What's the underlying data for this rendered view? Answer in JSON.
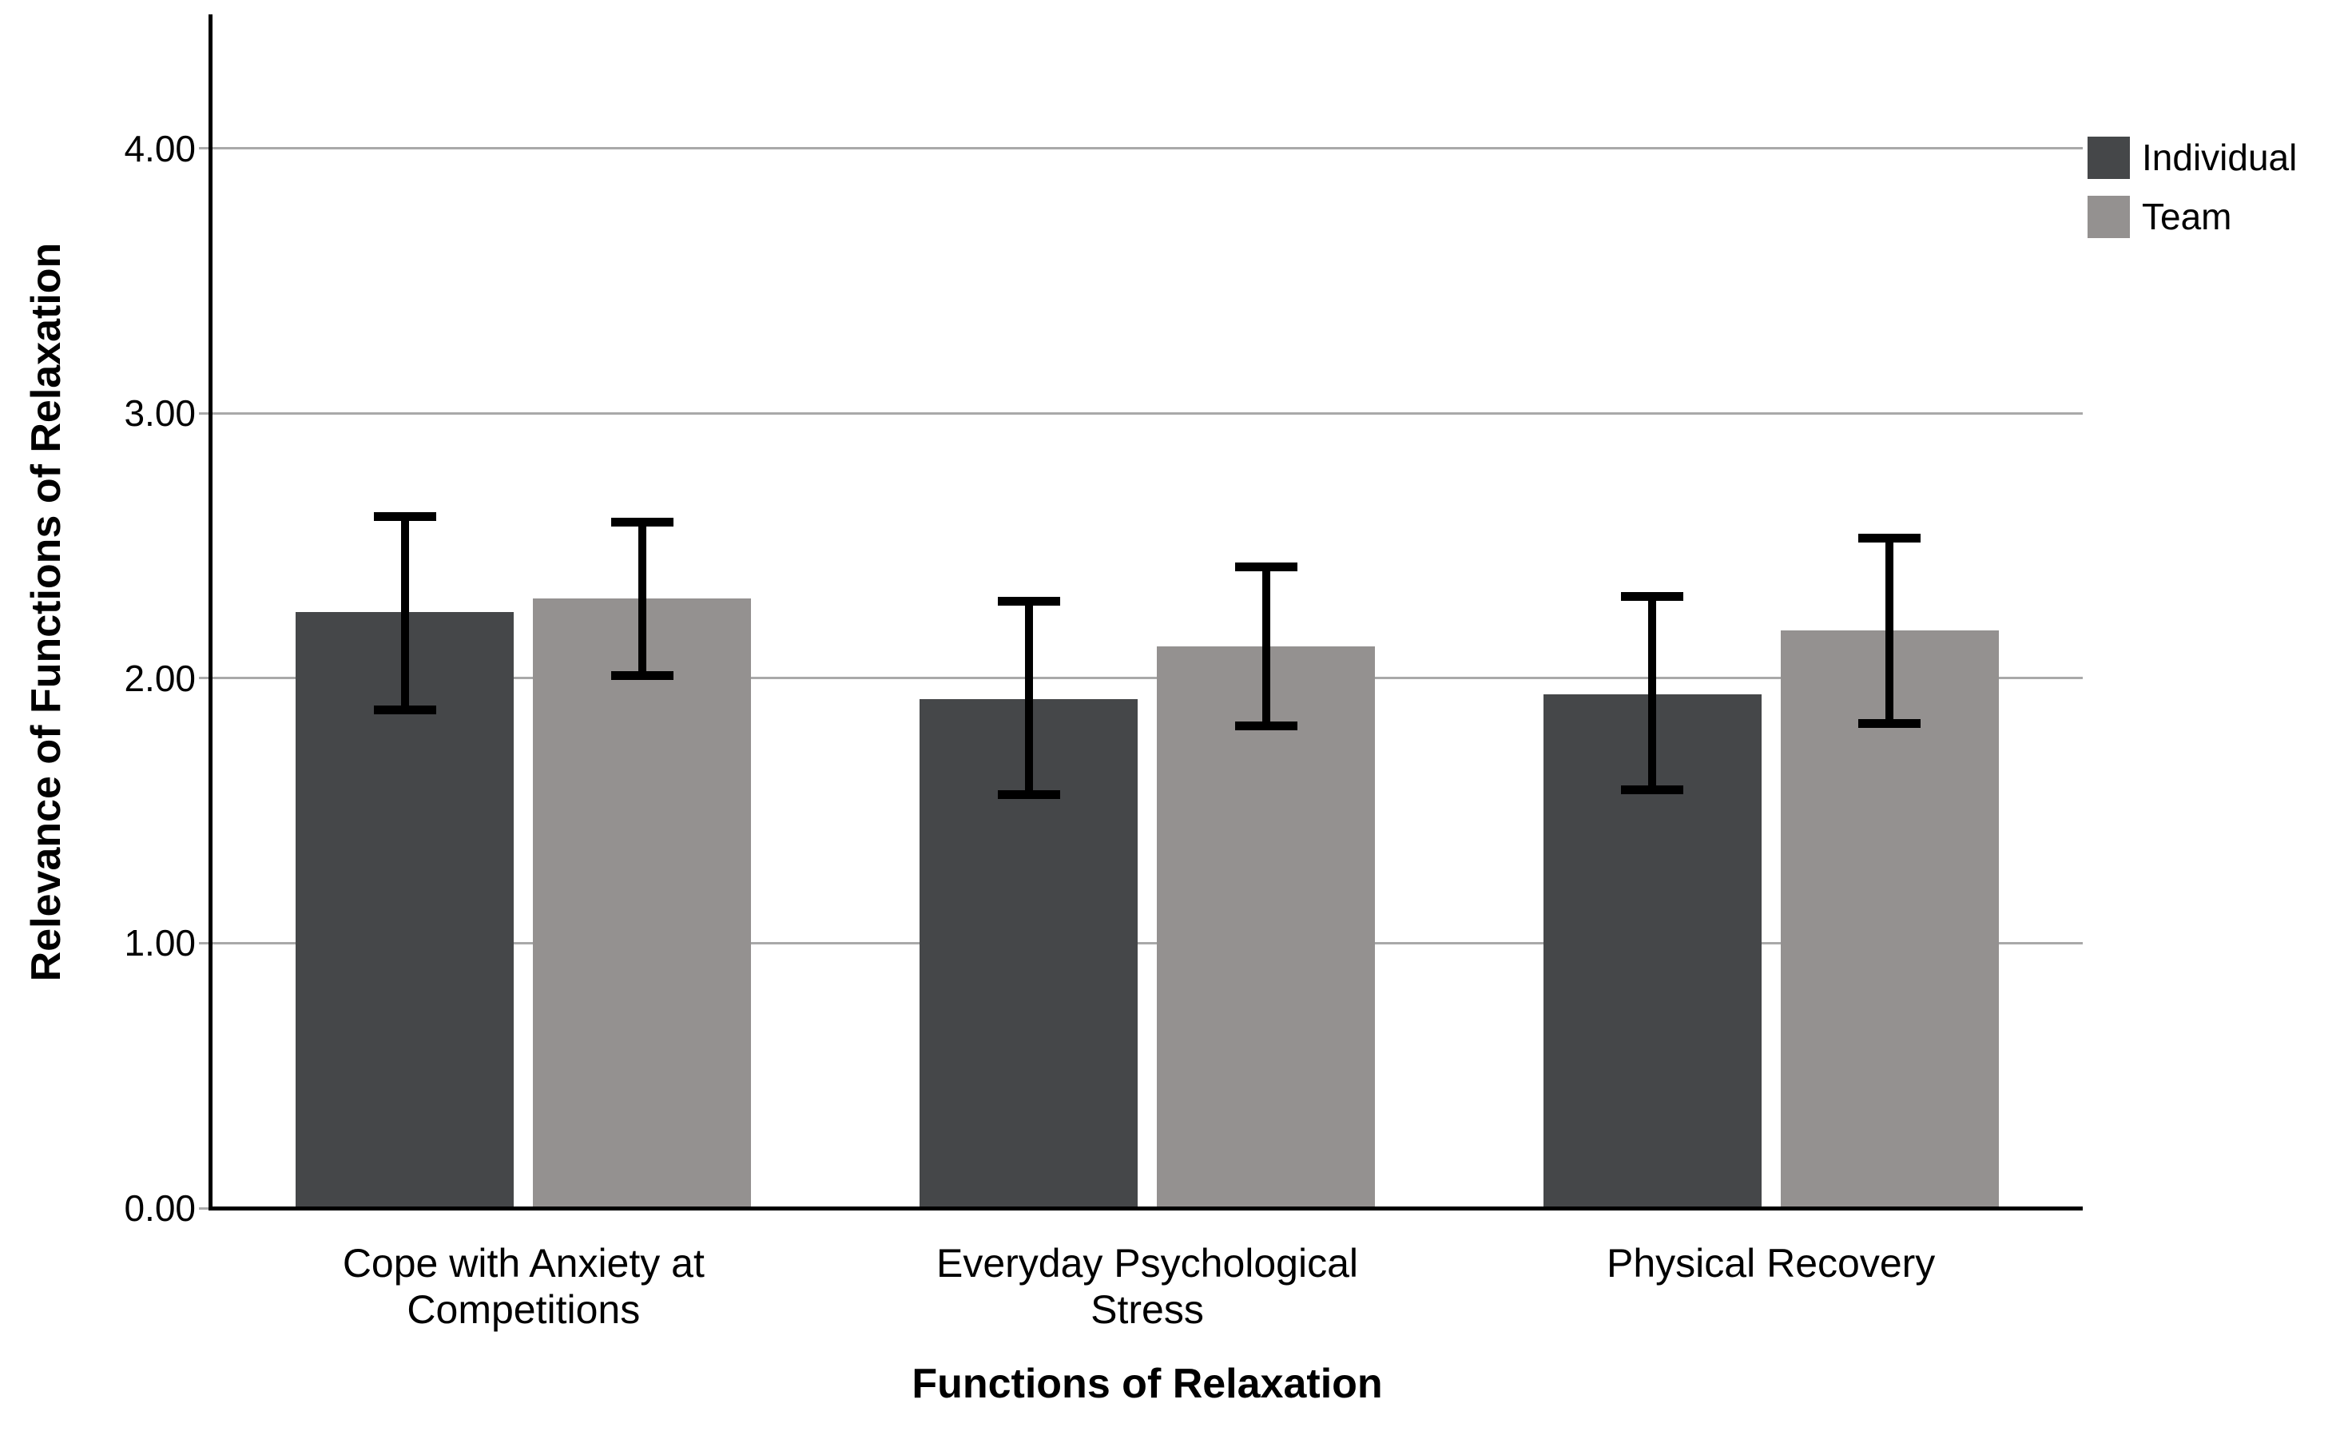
{
  "chart_data": {
    "type": "bar",
    "title": "",
    "xlabel": "Functions of Relaxation",
    "ylabel": "Relevance of Functions of Relaxation",
    "categories": [
      "Cope with Anxiety at\nCompetitions",
      "Everyday Psychological\nStress",
      "Physical Recovery"
    ],
    "y_ticks": [
      "0.00",
      "1.00",
      "2.00",
      "3.00",
      "4.00"
    ],
    "y_tick_values": [
      0,
      1,
      2,
      3,
      4
    ],
    "ylim": [
      0,
      4.5
    ],
    "grid": true,
    "error_bars": true,
    "legend_position": "top-right",
    "series": [
      {
        "name": "Individual",
        "color": "#454749",
        "values": [
          2.25,
          1.92,
          1.94
        ],
        "ci_low": [
          1.88,
          1.56,
          1.58
        ],
        "ci_high": [
          2.61,
          2.29,
          2.31
        ]
      },
      {
        "name": "Team",
        "color": "#949190",
        "values": [
          2.3,
          2.12,
          2.18
        ],
        "ci_low": [
          2.01,
          1.82,
          1.83
        ],
        "ci_high": [
          2.59,
          2.42,
          2.53
        ]
      }
    ]
  },
  "colors": {
    "gridline": "#a9a9a9",
    "axis": "#000000",
    "error_bar": "#000000",
    "background": "#ffffff",
    "text": "#000000"
  }
}
